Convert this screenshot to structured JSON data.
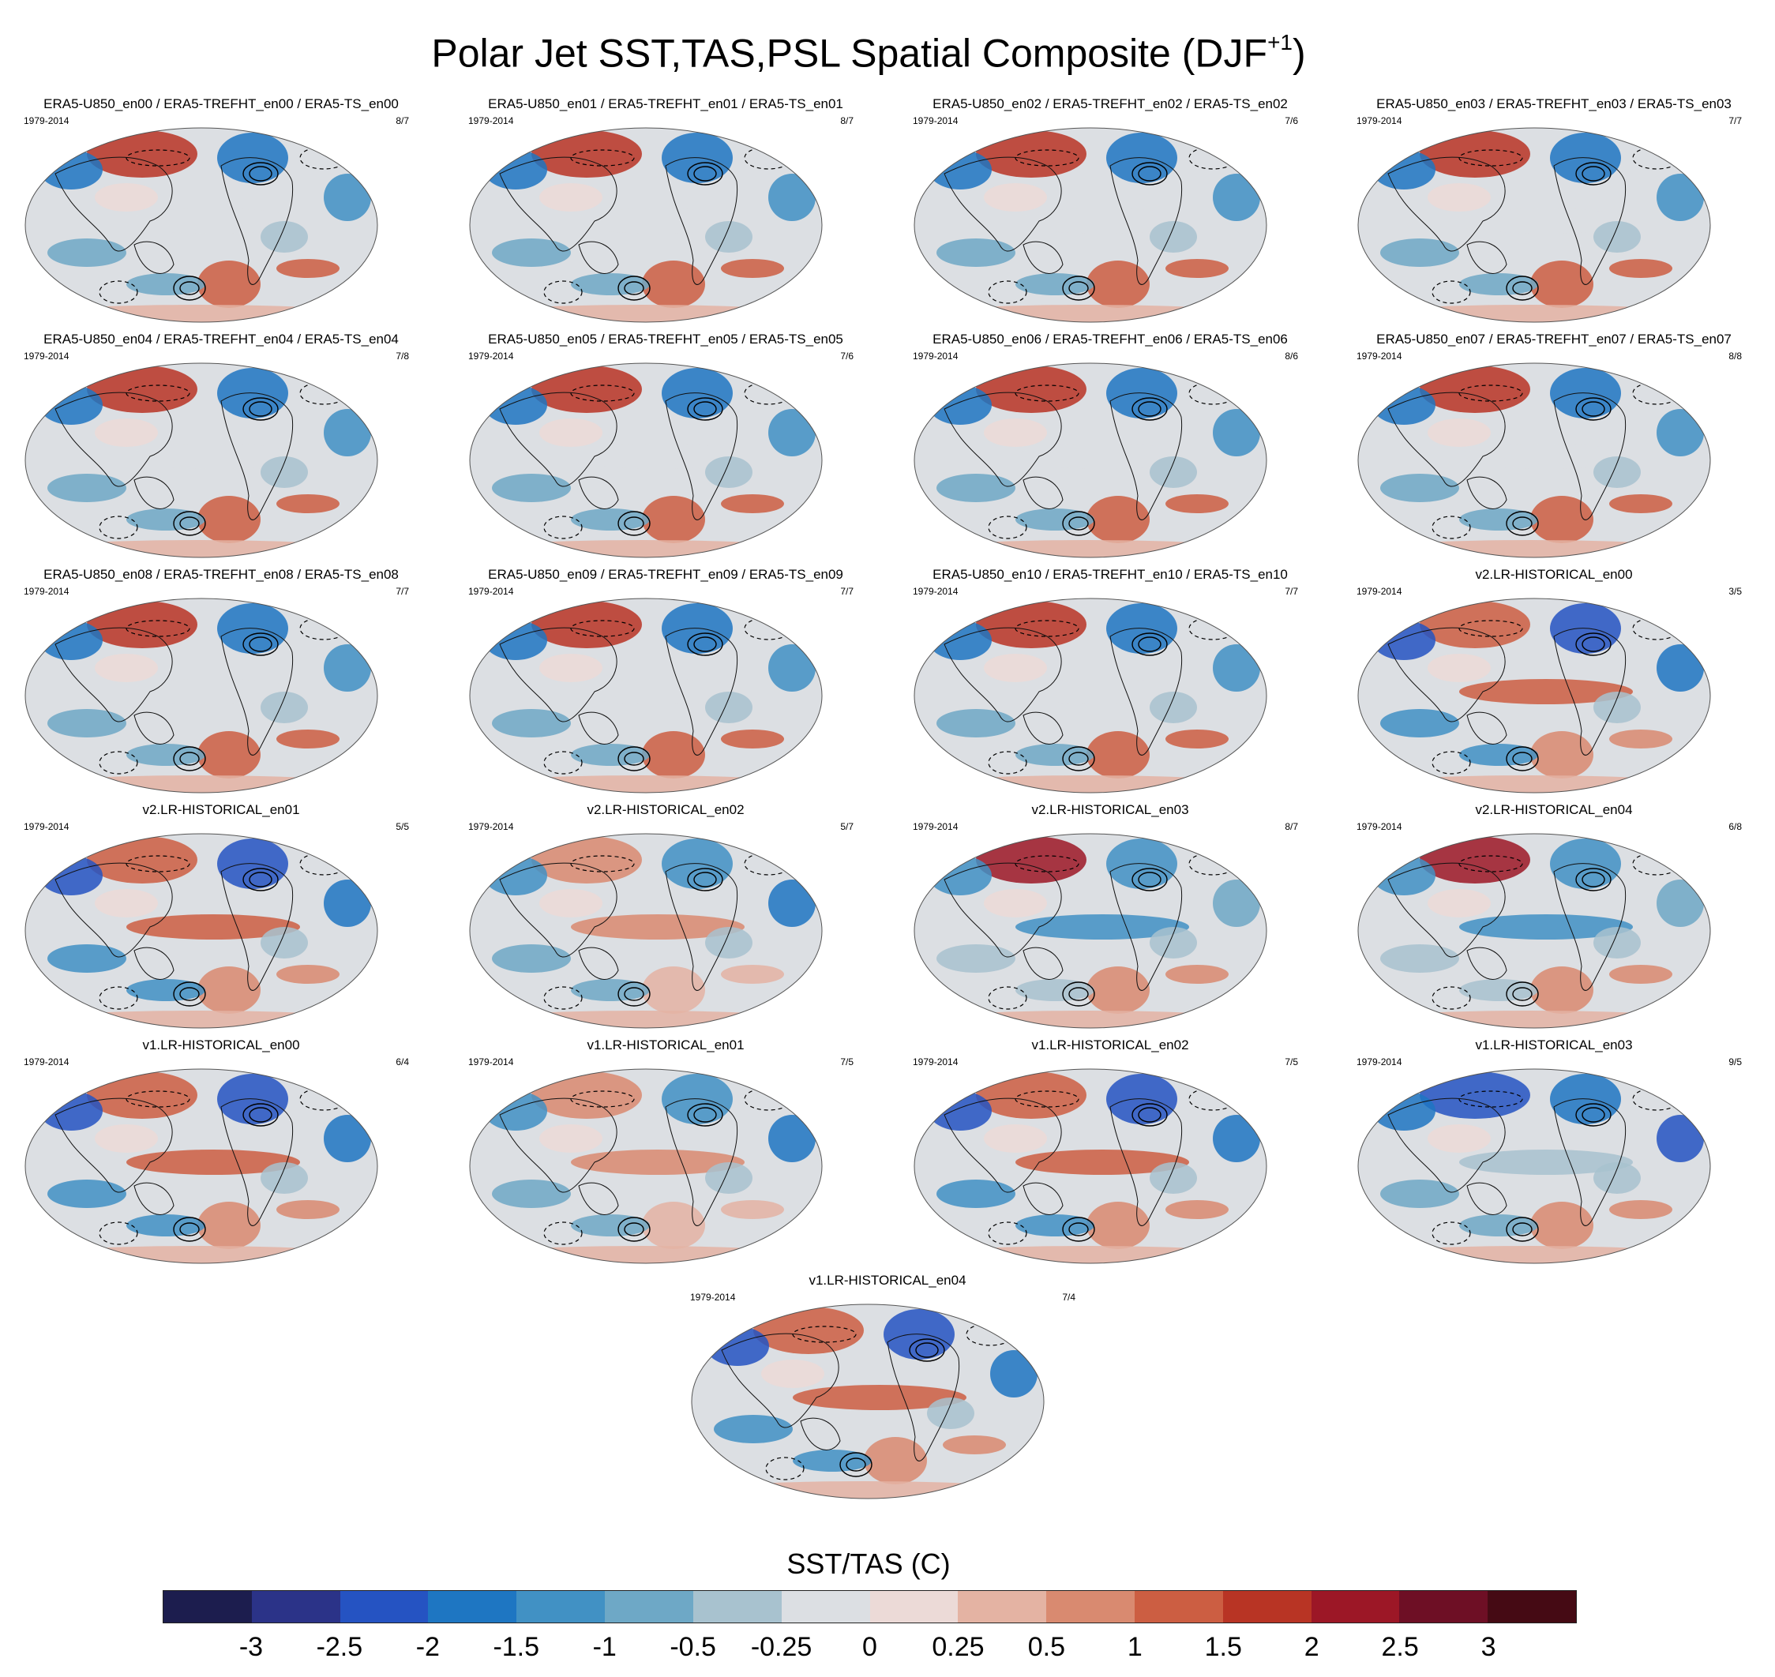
{
  "title": "Polar Jet SST,TAS,PSL Spatial Composite (DJF",
  "title_superscript": "+1",
  "title_suffix": ")",
  "panels": [
    {
      "title": "ERA5-U850_en00 / ERA5-TREFHT_en00 / ERA5-TS_en00",
      "period": "1979-2014",
      "count": "8/7",
      "style": "era5"
    },
    {
      "title": "ERA5-U850_en01 / ERA5-TREFHT_en01 / ERA5-TS_en01",
      "period": "1979-2014",
      "count": "8/7",
      "style": "era5"
    },
    {
      "title": "ERA5-U850_en02 / ERA5-TREFHT_en02 / ERA5-TS_en02",
      "period": "1979-2014",
      "count": "7/6",
      "style": "era5"
    },
    {
      "title": "ERA5-U850_en03 / ERA5-TREFHT_en03 / ERA5-TS_en03",
      "period": "1979-2014",
      "count": "7/7",
      "style": "era5"
    },
    {
      "title": "ERA5-U850_en04 / ERA5-TREFHT_en04 / ERA5-TS_en04",
      "period": "1979-2014",
      "count": "7/8",
      "style": "era5"
    },
    {
      "title": "ERA5-U850_en05 / ERA5-TREFHT_en05 / ERA5-TS_en05",
      "period": "1979-2014",
      "count": "7/6",
      "style": "era5"
    },
    {
      "title": "ERA5-U850_en06 / ERA5-TREFHT_en06 / ERA5-TS_en06",
      "period": "1979-2014",
      "count": "8/6",
      "style": "era5"
    },
    {
      "title": "ERA5-U850_en07 / ERA5-TREFHT_en07 / ERA5-TS_en07",
      "period": "1979-2014",
      "count": "8/8",
      "style": "era5"
    },
    {
      "title": "ERA5-U850_en08 / ERA5-TREFHT_en08 / ERA5-TS_en08",
      "period": "1979-2014",
      "count": "7/7",
      "style": "era5"
    },
    {
      "title": "ERA5-U850_en09 / ERA5-TREFHT_en09 / ERA5-TS_en09",
      "period": "1979-2014",
      "count": "7/7",
      "style": "era5"
    },
    {
      "title": "ERA5-U850_en10 / ERA5-TREFHT_en10 / ERA5-TS_en10",
      "period": "1979-2014",
      "count": "7/7",
      "style": "era5"
    },
    {
      "title": "v2.LR-HISTORICAL_en00",
      "period": "1979-2014",
      "count": "3/5",
      "style": "warm-pac"
    },
    {
      "title": "v2.LR-HISTORICAL_en01",
      "period": "1979-2014",
      "count": "5/5",
      "style": "warm-pac"
    },
    {
      "title": "v2.LR-HISTORICAL_en02",
      "period": "1979-2014",
      "count": "5/7",
      "style": "warm"
    },
    {
      "title": "v2.LR-HISTORICAL_en03",
      "period": "1979-2014",
      "count": "8/7",
      "style": "cool-pac"
    },
    {
      "title": "v2.LR-HISTORICAL_en04",
      "period": "1979-2014",
      "count": "6/8",
      "style": "cool-pac"
    },
    {
      "title": "v1.LR-HISTORICAL_en00",
      "period": "1979-2014",
      "count": "6/4",
      "style": "warm-pac"
    },
    {
      "title": "v1.LR-HISTORICAL_en01",
      "period": "1979-2014",
      "count": "7/5",
      "style": "warm"
    },
    {
      "title": "v1.LR-HISTORICAL_en02",
      "period": "1979-2014",
      "count": "7/5",
      "style": "warm-pac"
    },
    {
      "title": "v1.LR-HISTORICAL_en03",
      "period": "1979-2014",
      "count": "9/5",
      "style": "cool-north"
    },
    {
      "title": "v1.LR-HISTORICAL_en04",
      "period": "1979-2014",
      "count": "7/4",
      "style": "warm-pac"
    }
  ],
  "colorbar": {
    "title": "SST/TAS (C)",
    "colors": [
      "#1c1d4e",
      "#2b3388",
      "#2553c2",
      "#1e76c2",
      "#4191c4",
      "#6ea8c6",
      "#a8c2cf",
      "#dcdfe3",
      "#ecdad7",
      "#e4b3a3",
      "#d98a70",
      "#cc5e42",
      "#b83424",
      "#9c1726",
      "#6e0f25",
      "#450a14"
    ],
    "labels": [
      "-3",
      "-2.5",
      "-2",
      "-1.5",
      "-1",
      "-0.5",
      "-0.25",
      "0",
      "0.25",
      "0.5",
      "1",
      "1.5",
      "2",
      "2.5",
      "3"
    ]
  }
}
